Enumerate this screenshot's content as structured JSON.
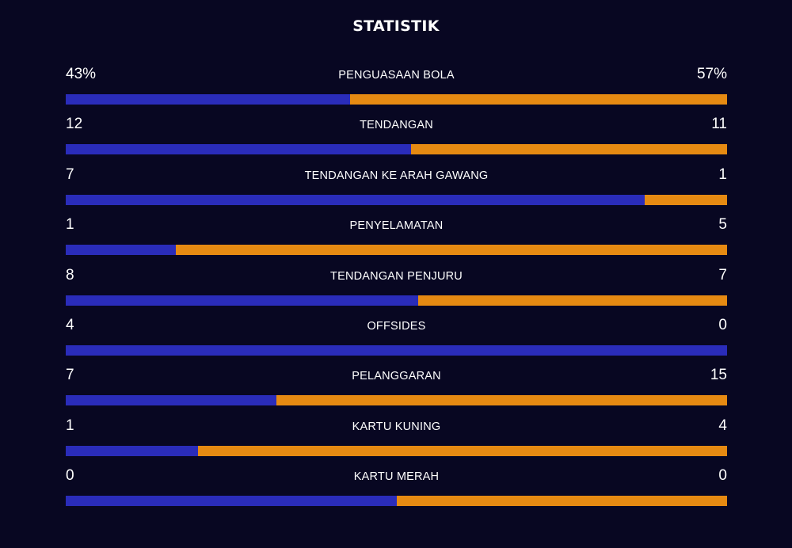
{
  "header": {
    "title": "STATISTIK"
  },
  "colors": {
    "background": "#080722",
    "home": "#2a2cba",
    "away": "#e68a12",
    "text": "#ffffff"
  },
  "stats": [
    {
      "label": "PENGUASAAN BOLA",
      "home": "43%",
      "away": "57%",
      "home_share": 0.43
    },
    {
      "label": "TENDANGAN",
      "home": "12",
      "away": "11",
      "home_share": 0.5217
    },
    {
      "label": "TENDANGAN KE ARAH GAWANG",
      "home": "7",
      "away": "1",
      "home_share": 0.875
    },
    {
      "label": "PENYELAMATAN",
      "home": "1",
      "away": "5",
      "home_share": 0.1667
    },
    {
      "label": "TENDANGAN PENJURU",
      "home": "8",
      "away": "7",
      "home_share": 0.5333
    },
    {
      "label": "OFFSIDES",
      "home": "4",
      "away": "0",
      "home_share": 1.0
    },
    {
      "label": "PELANGGARAN",
      "home": "7",
      "away": "15",
      "home_share": 0.3182
    },
    {
      "label": "KARTU KUNING",
      "home": "1",
      "away": "4",
      "home_share": 0.2
    },
    {
      "label": "KARTU MERAH",
      "home": "0",
      "away": "0",
      "home_share": 0.5
    }
  ]
}
